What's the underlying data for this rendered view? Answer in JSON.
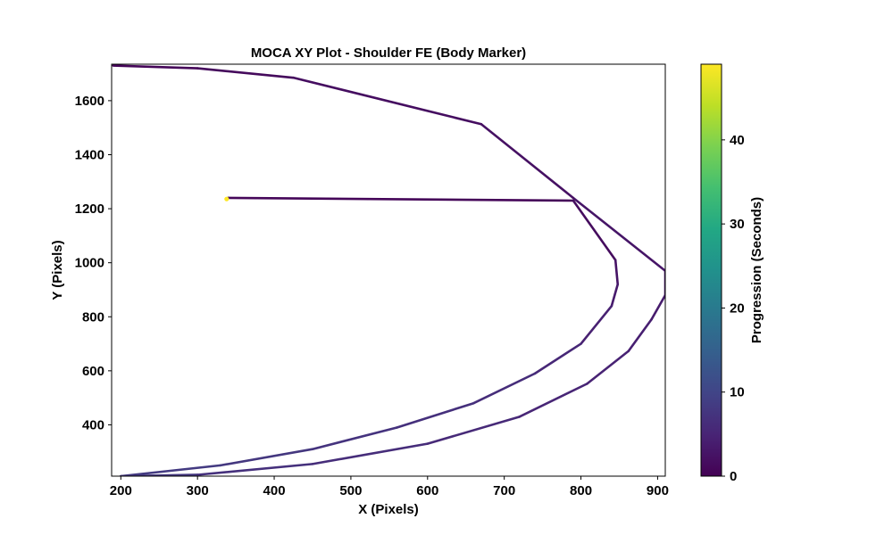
{
  "chart_data": {
    "type": "line",
    "title": "MOCA XY Plot - Shoulder FE (Body Marker)",
    "xlabel": "X (Pixels)",
    "ylabel": "Y (Pixels)",
    "xlim": [
      188,
      910
    ],
    "ylim": [
      210,
      1735
    ],
    "xticks": [
      200,
      300,
      400,
      500,
      600,
      700,
      800,
      900
    ],
    "yticks": [
      400,
      600,
      800,
      1000,
      1200,
      1400,
      1600
    ],
    "grid": false,
    "colorbar": {
      "label": "Progression (Seconds)",
      "range": [
        0,
        49
      ],
      "ticks": [
        0,
        10,
        20,
        30,
        40
      ],
      "colormap": "viridis"
    },
    "series": [
      {
        "points": [
          {
            "x": 338,
            "y": 1236,
            "t": 49
          },
          {
            "x": 340,
            "y": 1240,
            "t": 0.5
          },
          {
            "x": 790,
            "y": 1230,
            "t": 1
          },
          {
            "x": 845,
            "y": 1010,
            "t": 2
          },
          {
            "x": 848,
            "y": 920,
            "t": 3
          },
          {
            "x": 840,
            "y": 840,
            "t": 4
          },
          {
            "x": 800,
            "y": 700,
            "t": 5
          },
          {
            "x": 740,
            "y": 590,
            "t": 6
          },
          {
            "x": 660,
            "y": 480,
            "t": 6.5
          },
          {
            "x": 560,
            "y": 390,
            "t": 7
          },
          {
            "x": 450,
            "y": 310,
            "t": 7.5
          },
          {
            "x": 330,
            "y": 250,
            "t": 8
          },
          {
            "x": 200,
            "y": 210,
            "t": 8.5
          },
          {
            "x": 300,
            "y": 215,
            "t": 7
          },
          {
            "x": 450,
            "y": 255,
            "t": 6.5
          },
          {
            "x": 600,
            "y": 330,
            "t": 6
          },
          {
            "x": 720,
            "y": 430,
            "t": 5.5
          },
          {
            "x": 808,
            "y": 552,
            "t": 5
          },
          {
            "x": 862,
            "y": 673,
            "t": 4.5
          },
          {
            "x": 892,
            "y": 790,
            "t": 4
          },
          {
            "x": 910,
            "y": 880,
            "t": 3.5
          },
          {
            "x": 910,
            "y": 970,
            "t": 3
          },
          {
            "x": 790,
            "y": 1240,
            "t": 2.5
          },
          {
            "x": 670,
            "y": 1513,
            "t": 2
          },
          {
            "x": 425,
            "y": 1685,
            "t": 1.5
          },
          {
            "x": 300,
            "y": 1720,
            "t": 1
          },
          {
            "x": 190,
            "y": 1730,
            "t": 0.5
          }
        ]
      }
    ]
  }
}
